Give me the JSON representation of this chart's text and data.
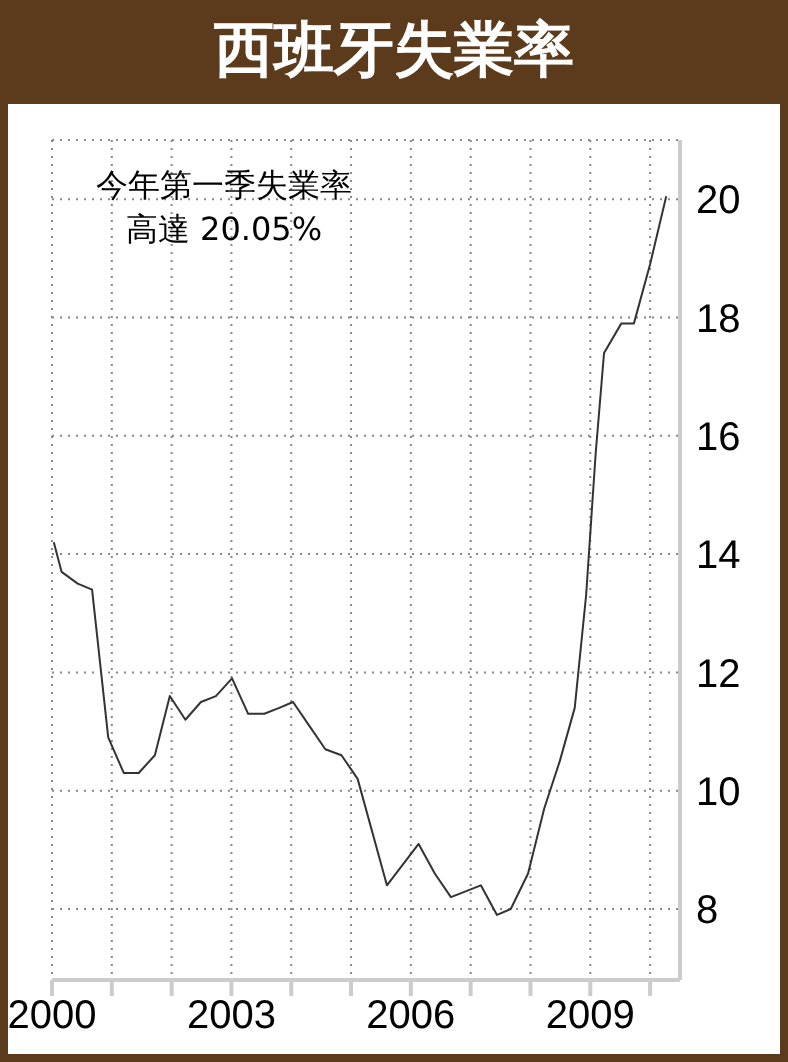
{
  "chart_data": {
    "type": "line",
    "title": "西班牙失業率",
    "annotations": [
      "今年第一季失業率",
      "高達 20.05%"
    ],
    "x": [
      2000.03,
      2000.16,
      2000.43,
      2000.67,
      2000.94,
      2001.2,
      2001.45,
      2001.72,
      2001.97,
      2002.23,
      2002.49,
      2002.74,
      2003.01,
      2003.28,
      2003.55,
      2003.8,
      2004.03,
      2004.3,
      2004.57,
      2004.84,
      2005.11,
      2005.6,
      2006.13,
      2006.4,
      2006.67,
      2007.17,
      2007.44,
      2007.67,
      2007.96,
      2008.23,
      2008.49,
      2008.74,
      2008.93,
      2009.09,
      2009.23,
      2009.52,
      2009.73,
      2010,
      2010.27
    ],
    "series": [
      {
        "color": "#333333",
        "values": [
          14.2,
          13.7,
          13.5,
          13.4,
          10.9,
          10.3,
          10.3,
          10.6,
          11.6,
          11.2,
          11.5,
          11.6,
          11.9,
          11.3,
          11.3,
          11.4,
          11.5,
          11.1,
          10.7,
          10.6,
          10.2,
          8.4,
          9.1,
          8.6,
          8.2,
          8.4,
          7.9,
          8.0,
          8.6,
          9.7,
          10.5,
          11.4,
          13.3,
          15.7,
          17.4,
          17.9,
          17.9,
          18.9,
          20.05
        ]
      }
    ],
    "xlim": [
      2000,
      2010.5
    ],
    "xticks": [
      2000,
      {
        "value": 2001,
        "label": null
      },
      {
        "value": 2002,
        "label": null
      },
      2003,
      {
        "value": 2004,
        "label": null
      },
      {
        "value": 2005,
        "label": null
      },
      2006,
      {
        "value": 2007,
        "label": null
      },
      {
        "value": 2008,
        "label": null
      },
      2009,
      {
        "value": 2010,
        "label": null
      }
    ],
    "ylim": [
      6.8,
      21
    ],
    "yticks": [
      8,
      10,
      12,
      14,
      16,
      18,
      20
    ],
    "grid": true,
    "marker": "none",
    "line_style": "solid"
  }
}
